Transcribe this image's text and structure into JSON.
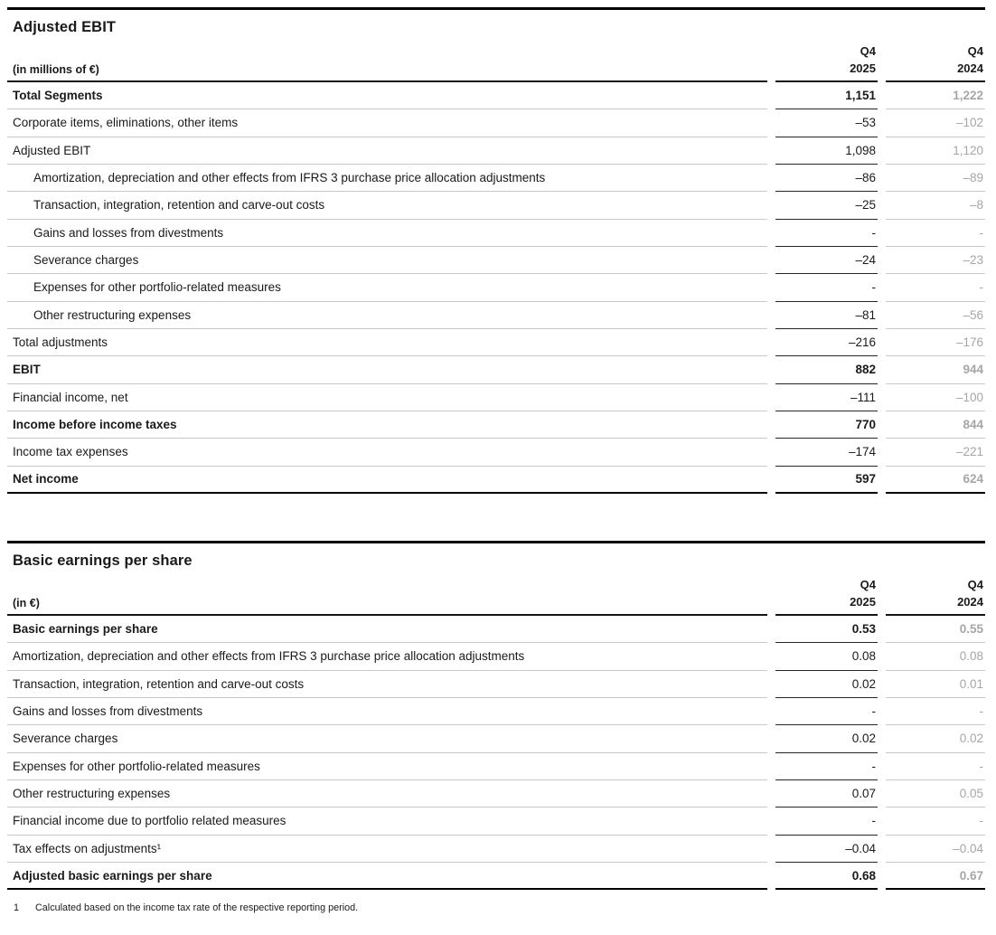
{
  "tables": [
    {
      "title": "Adjusted EBIT",
      "unit_label": "(in millions of €)",
      "col_current": {
        "period": "Q4",
        "year": "2025"
      },
      "col_prior": {
        "period": "Q4",
        "year": "2024"
      },
      "rows": [
        {
          "label": "Total Segments",
          "v2025": "1,151",
          "v2024": "1,222",
          "bold": true,
          "indent": false
        },
        {
          "label": "Corporate items, eliminations, other items",
          "v2025": "–53",
          "v2024": "–102",
          "bold": false,
          "indent": false
        },
        {
          "label": "Adjusted EBIT",
          "v2025": "1,098",
          "v2024": "1,120",
          "bold": false,
          "indent": false
        },
        {
          "label": "Amortization, depreciation and other effects from IFRS 3 purchase price allocation adjustments",
          "v2025": "–86",
          "v2024": "–89",
          "bold": false,
          "indent": true
        },
        {
          "label": "Transaction, integration, retention and carve-out costs",
          "v2025": "–25",
          "v2024": "–8",
          "bold": false,
          "indent": true
        },
        {
          "label": "Gains and losses from divestments",
          "v2025": "-",
          "v2024": "-",
          "bold": false,
          "indent": true
        },
        {
          "label": "Severance charges",
          "v2025": "–24",
          "v2024": "–23",
          "bold": false,
          "indent": true
        },
        {
          "label": "Expenses for other portfolio-related measures",
          "v2025": "-",
          "v2024": "-",
          "bold": false,
          "indent": true
        },
        {
          "label": "Other restructuring expenses",
          "v2025": "–81",
          "v2024": "–56",
          "bold": false,
          "indent": true
        },
        {
          "label": "Total adjustments",
          "v2025": "–216",
          "v2024": "–176",
          "bold": false,
          "indent": false
        },
        {
          "label": "EBIT",
          "v2025": "882",
          "v2024": "944",
          "bold": true,
          "indent": false
        },
        {
          "label": "Financial income, net",
          "v2025": "–111",
          "v2024": "–100",
          "bold": false,
          "indent": false
        },
        {
          "label": "Income before income taxes",
          "v2025": "770",
          "v2024": "844",
          "bold": true,
          "indent": false
        },
        {
          "label": "Income tax expenses",
          "v2025": "–174",
          "v2024": "–221",
          "bold": false,
          "indent": false
        },
        {
          "label": "Net income",
          "v2025": "597",
          "v2024": "624",
          "bold": true,
          "indent": false
        }
      ]
    },
    {
      "title": "Basic earnings per share",
      "unit_label": "(in €)",
      "col_current": {
        "period": "Q4",
        "year": "2025"
      },
      "col_prior": {
        "period": "Q4",
        "year": "2024"
      },
      "rows": [
        {
          "label": "Basic earnings per share",
          "v2025": "0.53",
          "v2024": "0.55",
          "bold": true,
          "indent": false
        },
        {
          "label": "Amortization, depreciation and other effects from IFRS 3 purchase price allocation adjustments",
          "v2025": "0.08",
          "v2024": "0.08",
          "bold": false,
          "indent": false
        },
        {
          "label": "Transaction, integration, retention and carve-out costs",
          "v2025": "0.02",
          "v2024": "0.01",
          "bold": false,
          "indent": false
        },
        {
          "label": "Gains and losses from divestments",
          "v2025": "-",
          "v2024": "-",
          "bold": false,
          "indent": false
        },
        {
          "label": "Severance charges",
          "v2025": "0.02",
          "v2024": "0.02",
          "bold": false,
          "indent": false
        },
        {
          "label": "Expenses for other portfolio-related measures",
          "v2025": "-",
          "v2024": "-",
          "bold": false,
          "indent": false
        },
        {
          "label": "Other restructuring expenses",
          "v2025": "0.07",
          "v2024": "0.05",
          "bold": false,
          "indent": false
        },
        {
          "label": "Financial income due to portfolio related measures",
          "v2025": "-",
          "v2024": "-",
          "bold": false,
          "indent": false
        },
        {
          "label": "Tax effects on adjustments¹",
          "v2025": "–0.04",
          "v2024": "–0.04",
          "bold": false,
          "indent": false
        },
        {
          "label": "Adjusted basic earnings per share",
          "v2025": "0.68",
          "v2024": "0.67",
          "bold": true,
          "indent": false
        }
      ]
    }
  ],
  "footnote": {
    "marker": "1",
    "text": "Calculated based on the income tax rate of the respective reporting period."
  },
  "colors": {
    "text": "#1a1a1a",
    "muted_value": "#a6a6a6",
    "line_light": "#c9c9c9",
    "line_dark": "#000000"
  }
}
